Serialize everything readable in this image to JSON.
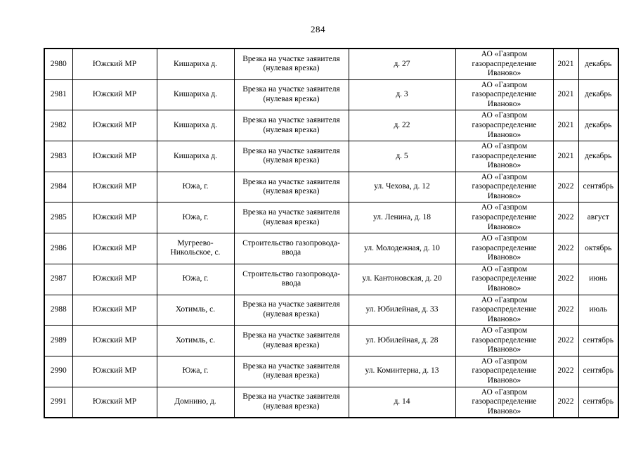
{
  "page": {
    "number": "284"
  },
  "table": {
    "column_keys": [
      "number",
      "municipality",
      "settlement",
      "work-type",
      "address",
      "organization",
      "year",
      "month"
    ],
    "rows": [
      [
        "2980",
        "Южский МР",
        "Кишариха д.",
        "Врезка на участке заявителя (нулевая врезка)",
        "д. 27",
        "АО «Газпром газораспределение Иваново»",
        "2021",
        "декабрь"
      ],
      [
        "2981",
        "Южский МР",
        "Кишариха д.",
        "Врезка на участке заявителя (нулевая врезка)",
        "д. 3",
        "АО «Газпром газораспределение Иваново»",
        "2021",
        "декабрь"
      ],
      [
        "2982",
        "Южский МР",
        "Кишариха д.",
        "Врезка на участке заявителя (нулевая врезка)",
        "д. 22",
        "АО «Газпром газораспределение Иваново»",
        "2021",
        "декабрь"
      ],
      [
        "2983",
        "Южский МР",
        "Кишариха д.",
        "Врезка на участке заявителя (нулевая врезка)",
        "д. 5",
        "АО «Газпром газораспределение Иваново»",
        "2021",
        "декабрь"
      ],
      [
        "2984",
        "Южский МР",
        "Южа, г.",
        "Врезка на участке заявителя (нулевая врезка)",
        "ул. Чехова, д. 12",
        "АО «Газпром газораспределение Иваново»",
        "2022",
        "сентябрь"
      ],
      [
        "2985",
        "Южский МР",
        "Южа, г.",
        "Врезка на участке заявителя (нулевая врезка)",
        "ул. Ленина, д. 18",
        "АО «Газпром газораспределение Иваново»",
        "2022",
        "август"
      ],
      [
        "2986",
        "Южский МР",
        "Мугреево-Никольское, с.",
        "Строительство газопровода-ввода",
        "ул. Молодежная, д. 10",
        "АО «Газпром газораспределение Иваново»",
        "2022",
        "октябрь"
      ],
      [
        "2987",
        "Южский МР",
        "Южа, г.",
        "Строительство газопровода-ввода",
        "ул. Кантоновская, д. 20",
        "АО «Газпром газораспределение Иваново»",
        "2022",
        "июнь"
      ],
      [
        "2988",
        "Южский МР",
        "Хотимль, с.",
        "Врезка на участке заявителя (нулевая врезка)",
        "ул. Юбилейная, д. 33",
        "АО «Газпром газораспределение Иваново»",
        "2022",
        "июль"
      ],
      [
        "2989",
        "Южский МР",
        "Хотимль, с.",
        "Врезка на участке заявителя (нулевая врезка)",
        "ул. Юбилейная, д. 28",
        "АО «Газпром газораспределение Иваново»",
        "2022",
        "сентябрь"
      ],
      [
        "2990",
        "Южский МР",
        "Южа, г.",
        "Врезка на участке заявителя (нулевая врезка)",
        "ул. Коминтерна, д. 13",
        "АО «Газпром газораспределение Иваново»",
        "2022",
        "сентябрь"
      ],
      [
        "2991",
        "Южский МР",
        "Домнино, д.",
        "Врезка на участке заявителя (нулевая врезка)",
        "д. 14",
        "АО «Газпром газораспределение Иваново»",
        "2022",
        "сентябрь"
      ]
    ]
  }
}
